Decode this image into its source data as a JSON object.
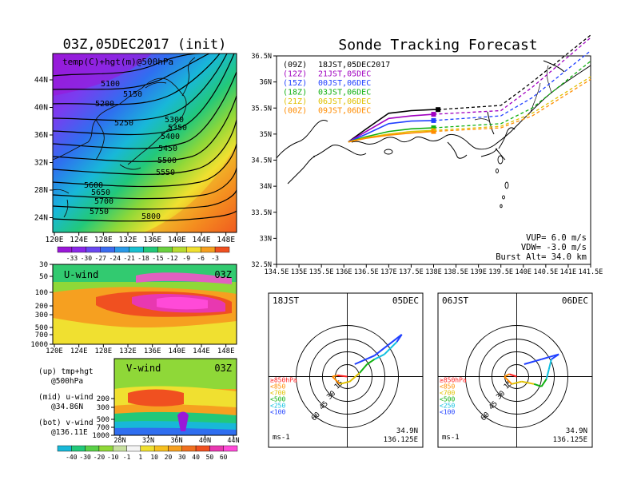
{
  "main_title": "Sonde Tracking Forecast",
  "map_panel": {
    "title": "03Z,05DEC2017 (init)",
    "label": "temp(C)+hgt(m)@500hPa",
    "x_ticks": [
      "120E",
      "124E",
      "128E",
      "132E",
      "136E",
      "140E",
      "144E",
      "148E"
    ],
    "y_ticks": [
      "44N",
      "40N",
      "36N",
      "32N",
      "28N",
      "24N"
    ],
    "contour_labels": [
      "5100",
      "5150",
      "5200",
      "5250",
      "5300",
      "5350",
      "5400",
      "5450",
      "5500",
      "5550",
      "5600",
      "5650",
      "5700",
      "5750",
      "5800"
    ],
    "colorbar_labels": [
      "-33",
      "-30",
      "-27",
      "-24",
      "-21",
      "-18",
      "-15",
      "-12",
      "-9",
      "-6",
      "-3"
    ]
  },
  "u_panel": {
    "title": "U-wind",
    "time": "03Z",
    "y_ticks": [
      "30",
      "50",
      "100",
      "200",
      "300",
      "500",
      "700",
      "1000"
    ],
    "x_ticks": [
      "120E",
      "124E",
      "128E",
      "132E",
      "136E",
      "140E",
      "144E",
      "148E"
    ]
  },
  "v_panel": {
    "title": "V-wind",
    "time": "03Z",
    "y_ticks": [
      "200",
      "300",
      "500",
      "700",
      "1000"
    ],
    "x_ticks": [
      "28N",
      "32N",
      "36N",
      "40N",
      "44N"
    ],
    "colorbar_labels": [
      "-40",
      "-30",
      "-20",
      "-10",
      "-1",
      "1",
      "10",
      "20",
      "30",
      "40",
      "50",
      "60"
    ]
  },
  "legend_notes": [
    "(up) tmp+hgt",
    "@500hPa",
    "(mid) u-wind",
    "@34.86N",
    "(bot) v-wind",
    "@136.11E"
  ],
  "chart_data": [
    {
      "type": "line",
      "title": "Sonde Tracking Forecast",
      "xlim": [
        134.5,
        141.5
      ],
      "ylim": [
        32.5,
        36.5
      ],
      "x_ticks": [
        "134.5E",
        "135E",
        "135.5E",
        "136E",
        "136.5E",
        "137E",
        "137.5E",
        "138E",
        "138.5E",
        "139E",
        "139.5E",
        "140E",
        "140.5E",
        "141E",
        "141.5E"
      ],
      "y_ticks": [
        "36.5N",
        "36N",
        "35.5N",
        "35N",
        "34.5N",
        "34N",
        "33.5N",
        "33N",
        "32.5N"
      ],
      "legend": [
        {
          "code": "(09Z)",
          "text": "18JST,05DEC2017",
          "color": "#000000"
        },
        {
          "code": "(12Z)",
          "text": "21JST,05DEC",
          "color": "#a000c0"
        },
        {
          "code": "(15Z)",
          "text": "00JST,06DEC",
          "color": "#2040ff"
        },
        {
          "code": "(18Z)",
          "text": "03JST,06DEC",
          "color": "#10b010"
        },
        {
          "code": "(21Z)",
          "text": "06JST,06DEC",
          "color": "#e0c000"
        },
        {
          "code": "(00Z)",
          "text": "09JST,06DEC",
          "color": "#ff8c00"
        }
      ],
      "series": [
        {
          "name": "(09Z)",
          "color": "#000000",
          "x": [
            136.1,
            136.5,
            137.0,
            137.5,
            138.0,
            138.1
          ],
          "y": [
            34.85,
            35.1,
            35.4,
            35.45,
            35.47,
            35.47
          ],
          "ext_x": [
            138.1,
            139.5,
            140.2,
            141.5
          ],
          "ext_y": [
            35.47,
            35.55,
            36.0,
            36.9
          ]
        },
        {
          "name": "(12Z)",
          "color": "#a000c0",
          "x": [
            136.1,
            136.5,
            137.0,
            137.5,
            138.0
          ],
          "y": [
            34.85,
            35.05,
            35.3,
            35.35,
            35.38
          ],
          "ext_x": [
            138.0,
            139.5,
            140.2,
            141.5
          ],
          "ext_y": [
            35.38,
            35.45,
            35.9,
            36.85
          ]
        },
        {
          "name": "(15Z)",
          "color": "#2040ff",
          "x": [
            136.1,
            136.5,
            137.0,
            137.5,
            138.0
          ],
          "y": [
            34.85,
            35.0,
            35.2,
            35.25,
            35.26
          ],
          "ext_x": [
            138.0,
            139.5,
            140.2,
            141.5
          ],
          "ext_y": [
            35.26,
            35.35,
            35.7,
            36.6
          ]
        },
        {
          "name": "(18Z)",
          "color": "#10b010",
          "x": [
            136.1,
            136.5,
            137.0,
            137.5,
            138.0
          ],
          "y": [
            34.85,
            34.95,
            35.05,
            35.1,
            35.12
          ],
          "ext_x": [
            138.0,
            139.5,
            140.2,
            141.5
          ],
          "ext_y": [
            35.12,
            35.2,
            35.5,
            36.4
          ]
        },
        {
          "name": "(21Z)",
          "color": "#e0c000",
          "x": [
            136.1,
            136.5,
            137.0,
            137.5,
            138.0
          ],
          "y": [
            34.85,
            34.93,
            35.0,
            35.05,
            35.07
          ],
          "ext_x": [
            138.0,
            139.5,
            140.2,
            141.5
          ],
          "ext_y": [
            35.07,
            35.15,
            35.4,
            36.1
          ]
        },
        {
          "name": "(00Z)",
          "color": "#ff8c00",
          "x": [
            136.1,
            136.5,
            137.0,
            137.5,
            138.0
          ],
          "y": [
            34.85,
            34.92,
            34.98,
            35.02,
            35.05
          ],
          "ext_x": [
            138.0,
            139.5,
            140.2,
            141.5
          ],
          "ext_y": [
            35.05,
            35.12,
            35.35,
            36.05
          ]
        }
      ],
      "stats": [
        "VUP= 6.0 m/s",
        "VDW= -3.0 m/s",
        "Burst Alt= 34.0 km"
      ]
    }
  ],
  "hodographs": [
    {
      "left_label": "18JST",
      "right_label": "05DEC",
      "ring_labels": [
        "15",
        "30",
        "45",
        "60"
      ],
      "pressure_legend": [
        {
          "text": "≥850hPa",
          "color": "#ff2020"
        },
        {
          "text": "<850",
          "color": "#ff8c00"
        },
        {
          "text": "<700",
          "color": "#e0c000"
        },
        {
          "text": "<500",
          "color": "#10b010"
        },
        {
          "text": "<250",
          "color": "#10c0e0"
        },
        {
          "text": "<100",
          "color": "#2040ff"
        }
      ],
      "unit": "ms-1",
      "lat": "34.9N",
      "lon": "136.125E"
    },
    {
      "left_label": "06JST",
      "right_label": "06DEC",
      "ring_labels": [
        "15",
        "30",
        "45",
        "60"
      ],
      "pressure_legend": [
        {
          "text": "≥850hPa",
          "color": "#ff2020"
        },
        {
          "text": "<850",
          "color": "#ff8c00"
        },
        {
          "text": "<700",
          "color": "#e0c000"
        },
        {
          "text": "<500",
          "color": "#10b010"
        },
        {
          "text": "<250",
          "color": "#10c0e0"
        },
        {
          "text": "<100",
          "color": "#2040ff"
        }
      ],
      "unit": "ms-1",
      "lat": "34.9N",
      "lon": "136.125E"
    }
  ]
}
